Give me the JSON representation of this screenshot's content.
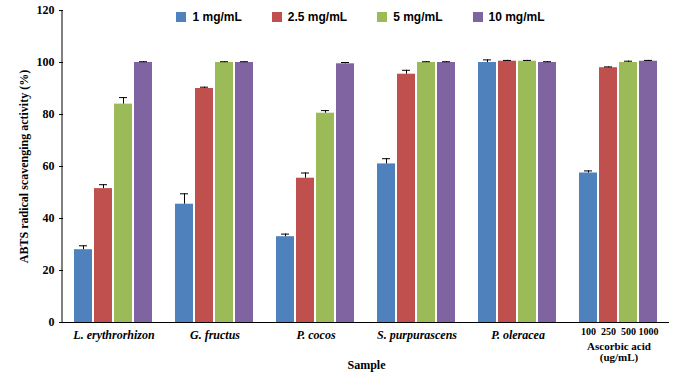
{
  "chart_data": {
    "type": "bar",
    "x_label": "Sample",
    "y_label": "ABTS radical scavenging activity (%)",
    "categories": [
      "L. erythrorhizon",
      "G. fructus",
      "P. cocos",
      "S. purpurascens",
      "P. oleracea",
      "Ascorbic acid\n(ug/mL)"
    ],
    "category_sublabels": [
      null,
      null,
      null,
      null,
      null,
      [
        100,
        250,
        500,
        1000
      ]
    ],
    "series": [
      {
        "name": "1 mg/mL",
        "color": "#4f81bd",
        "values": [
          28,
          45.5,
          33,
          61,
          100,
          57.5
        ],
        "errors": [
          1.5,
          4,
          1,
          2,
          1,
          0.8
        ]
      },
      {
        "name": "2.5 mg/mL",
        "color": "#c0504d",
        "values": [
          51.5,
          90,
          55.5,
          95.5,
          100.5,
          98
        ],
        "errors": [
          1.5,
          0.5,
          2,
          1.5,
          0.3,
          0.3
        ]
      },
      {
        "name": "5 mg/mL",
        "color": "#9bbb59",
        "values": [
          84,
          100,
          80.5,
          100,
          100.5,
          100
        ],
        "errors": [
          2.5,
          0.3,
          1,
          0.3,
          0.3,
          0.5
        ]
      },
      {
        "name": "10 mg/mL",
        "color": "#8064a2",
        "values": [
          100,
          100,
          99.5,
          100,
          100,
          100.5
        ],
        "errors": [
          0.3,
          0.3,
          0.5,
          0.3,
          0.3,
          0.3
        ]
      }
    ],
    "ylim": [
      0,
      120
    ],
    "yticks": [
      0,
      20,
      40,
      60,
      80,
      100,
      120
    ],
    "grid": false,
    "legend": "top"
  }
}
